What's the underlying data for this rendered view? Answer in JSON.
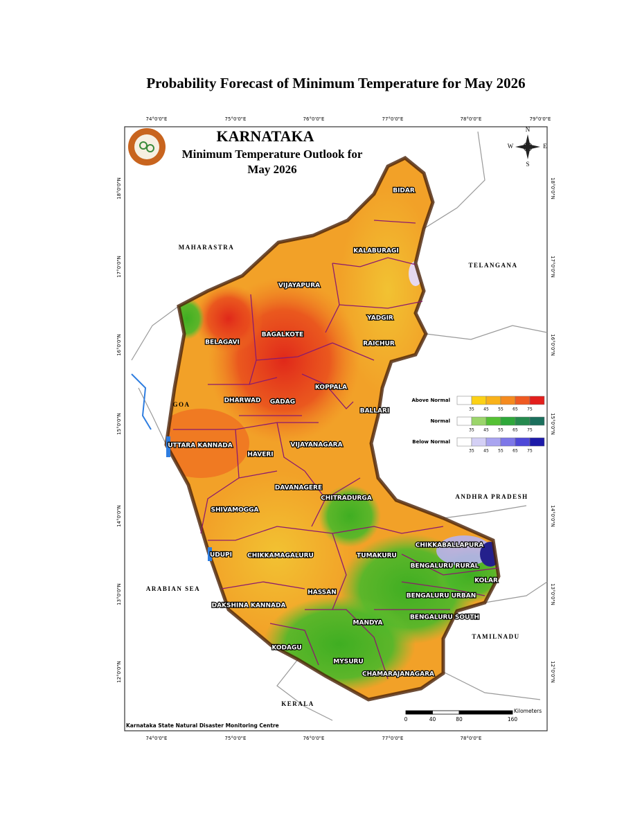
{
  "title": "Probability Forecast of Minimum Temperature for May 2026",
  "map": {
    "heading": "KARNATAKA",
    "subtitle_lines": [
      "Minimum Temperature Outlook for",
      "May 2026"
    ],
    "districts": [
      "BIDAR",
      "KALABURAGI",
      "VIJAYAPURA",
      "YADGIR",
      "BELAGAVI",
      "BAGALKOTE",
      "RAICHUR",
      "KOPPALA",
      "DHARWAD",
      "GADAG",
      "BALLARI",
      "UTTARA KANNADA",
      "VIJAYANAGARA",
      "HAVERI",
      "DAVANAGERE",
      "CHITRADURGA",
      "SHIVAMOGGA",
      "CHIKKABALLAPURA",
      "UDUPI",
      "CHIKKAMAGALURU",
      "TUMAKURU",
      "BENGALURU RURAL",
      "KOLAR",
      "HASSAN",
      "BENGALURU URBAN",
      "DAKSHINA KANNADA",
      "BENGALURU SOUTH",
      "MANDYA",
      "KODAGU",
      "MYSURU",
      "CHAMARAJANAGARA"
    ],
    "neighbors": [
      "MAHARASTRA",
      "TELANGANA",
      "GOA",
      "ANDHRA PRADESH",
      "ARABIAN SEA",
      "TAMILNADU",
      "KERALA"
    ],
    "longitudes": [
      "74°0'0\"E",
      "75°0'0\"E",
      "76°0'0\"E",
      "77°0'0\"E",
      "78°0'0\"E",
      "79°0'0\"E"
    ],
    "latitudes": [
      "18°0'0\"N",
      "17°0'0\"N",
      "16°0'0\"N",
      "15°0'0\"N",
      "14°0'0\"N",
      "13°0'0\"N",
      "12°0'0\"N"
    ],
    "compass": {
      "n": "N",
      "e": "E",
      "s": "S",
      "w": "W"
    },
    "legend": {
      "rows": [
        {
          "label": "Above Normal",
          "colors": [
            "#ffffff",
            "#fcd116",
            "#f9b21a",
            "#f58b1f",
            "#ef5a22",
            "#e31f1c"
          ]
        },
        {
          "label": "Normal",
          "colors": [
            "#ffffff",
            "#9bd56b",
            "#55c134",
            "#2fa83b",
            "#268a4e",
            "#1b6f5c"
          ]
        },
        {
          "label": "Below Normal",
          "colors": [
            "#ffffff",
            "#d4d0f5",
            "#a9a4f0",
            "#7d77e8",
            "#4e48d8",
            "#1d1aa8"
          ]
        }
      ],
      "ticks": [
        35,
        45,
        55,
        65,
        75
      ]
    },
    "scale": {
      "unit": "Kilometers",
      "ticks": [
        0,
        40,
        80,
        160
      ]
    },
    "credit": "Karnataka State Natural Disaster Monitoring Centre"
  }
}
